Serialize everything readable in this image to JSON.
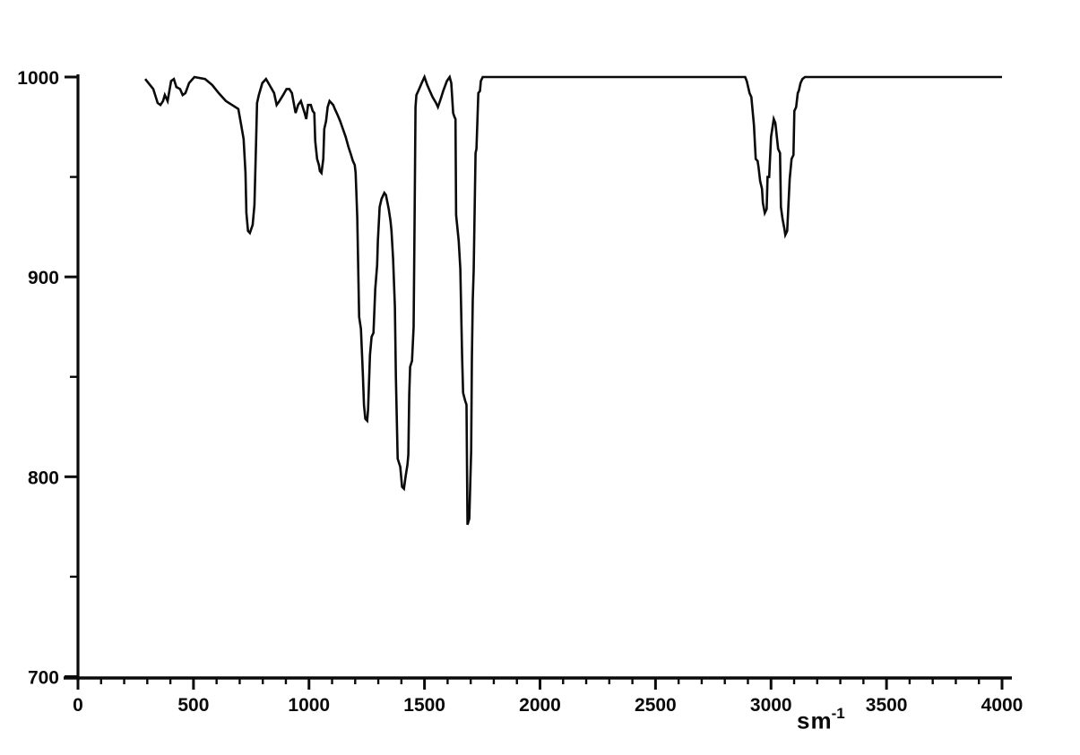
{
  "figure": {
    "background": "#ffffff",
    "curve_color": "#0a0a0a",
    "axis_color": "#0a0a0a"
  },
  "axes": {
    "x": {
      "min": 0,
      "max": 4000,
      "major_tick_step": 500,
      "minor_tick_step": 100,
      "tick_labels": [
        "0",
        "500",
        "1000",
        "1500",
        "2000",
        "2500",
        "3000",
        "3500",
        "4000"
      ],
      "unit_base": "sm",
      "unit_exponent": "-1"
    },
    "y": {
      "min": 700,
      "max": 1000,
      "major_tick_step": 100,
      "minor_tick_step": 50,
      "tick_labels": [
        "700",
        "800",
        "900",
        "1000"
      ]
    }
  },
  "chart_data": {
    "type": "line",
    "title": "",
    "xlabel": "sm⁻¹",
    "ylabel": "",
    "xlim": [
      0,
      4000
    ],
    "ylim": [
      700,
      1000
    ],
    "grid": false,
    "legend_position": "none",
    "absorption_minima_x": [
      736,
      1050,
      1240,
      1403,
      1686,
      2973,
      3062
    ],
    "series": [
      {
        "name": "spectrum",
        "color": "#0a0a0a",
        "points": [
          [
            291,
            999
          ],
          [
            326,
            994
          ],
          [
            345,
            987
          ],
          [
            357,
            986
          ],
          [
            368,
            988
          ],
          [
            376,
            991
          ],
          [
            388,
            988
          ],
          [
            403,
            998
          ],
          [
            415,
            999
          ],
          [
            426,
            995
          ],
          [
            442,
            994
          ],
          [
            453,
            991
          ],
          [
            465,
            992
          ],
          [
            481,
            997
          ],
          [
            504,
            1000
          ],
          [
            550,
            999
          ],
          [
            581,
            996
          ],
          [
            609,
            992
          ],
          [
            640,
            988
          ],
          [
            667,
            986
          ],
          [
            694,
            984
          ],
          [
            705,
            977
          ],
          [
            717,
            969
          ],
          [
            725,
            952
          ],
          [
            729,
            932
          ],
          [
            736,
            923
          ],
          [
            744,
            922
          ],
          [
            756,
            926
          ],
          [
            764,
            936
          ],
          [
            771,
            967
          ],
          [
            775,
            987
          ],
          [
            783,
            991
          ],
          [
            798,
            997
          ],
          [
            814,
            999
          ],
          [
            829,
            996
          ],
          [
            849,
            992
          ],
          [
            860,
            986
          ],
          [
            872,
            988
          ],
          [
            888,
            991
          ],
          [
            903,
            994
          ],
          [
            915,
            994
          ],
          [
            926,
            992
          ],
          [
            942,
            982
          ],
          [
            953,
            986
          ],
          [
            965,
            988
          ],
          [
            981,
            982
          ],
          [
            988,
            979
          ],
          [
            996,
            986
          ],
          [
            1008,
            986
          ],
          [
            1016,
            983
          ],
          [
            1023,
            982
          ],
          [
            1027,
            968
          ],
          [
            1035,
            959
          ],
          [
            1043,
            956
          ],
          [
            1047,
            953
          ],
          [
            1054,
            952
          ],
          [
            1062,
            959
          ],
          [
            1066,
            974
          ],
          [
            1074,
            978
          ],
          [
            1081,
            985
          ],
          [
            1089,
            988
          ],
          [
            1105,
            986
          ],
          [
            1112,
            984
          ],
          [
            1124,
            981
          ],
          [
            1135,
            978
          ],
          [
            1147,
            974
          ],
          [
            1159,
            970
          ],
          [
            1171,
            965
          ],
          [
            1182,
            961
          ],
          [
            1190,
            958
          ],
          [
            1198,
            956
          ],
          [
            1202,
            952
          ],
          [
            1209,
            930
          ],
          [
            1217,
            880
          ],
          [
            1225,
            874
          ],
          [
            1233,
            852
          ],
          [
            1238,
            836
          ],
          [
            1244,
            829
          ],
          [
            1252,
            828
          ],
          [
            1256,
            834
          ],
          [
            1264,
            861
          ],
          [
            1271,
            870
          ],
          [
            1279,
            872
          ],
          [
            1287,
            894
          ],
          [
            1295,
            906
          ],
          [
            1298,
            918
          ],
          [
            1306,
            935
          ],
          [
            1314,
            939
          ],
          [
            1326,
            942
          ],
          [
            1333,
            941
          ],
          [
            1345,
            934
          ],
          [
            1353,
            928
          ],
          [
            1357,
            923
          ],
          [
            1364,
            909
          ],
          [
            1372,
            885
          ],
          [
            1376,
            850
          ],
          [
            1384,
            809
          ],
          [
            1395,
            805
          ],
          [
            1403,
            795
          ],
          [
            1411,
            794
          ],
          [
            1418,
            800
          ],
          [
            1426,
            806
          ],
          [
            1430,
            811
          ],
          [
            1434,
            841
          ],
          [
            1438,
            855
          ],
          [
            1446,
            858
          ],
          [
            1453,
            875
          ],
          [
            1457,
            925
          ],
          [
            1459,
            957
          ],
          [
            1461,
            985
          ],
          [
            1465,
            991
          ],
          [
            1473,
            993
          ],
          [
            1488,
            997
          ],
          [
            1500,
            1000
          ],
          [
            1512,
            996
          ],
          [
            1523,
            993
          ],
          [
            1535,
            990
          ],
          [
            1550,
            987
          ],
          [
            1558,
            985
          ],
          [
            1570,
            989
          ],
          [
            1581,
            993
          ],
          [
            1597,
            998
          ],
          [
            1609,
            1000
          ],
          [
            1616,
            997
          ],
          [
            1624,
            982
          ],
          [
            1630,
            980
          ],
          [
            1634,
            979
          ],
          [
            1637,
            931
          ],
          [
            1648,
            918
          ],
          [
            1655,
            904
          ],
          [
            1663,
            860
          ],
          [
            1667,
            842
          ],
          [
            1676,
            838
          ],
          [
            1682,
            836
          ],
          [
            1686,
            776
          ],
          [
            1694,
            779
          ],
          [
            1702,
            813
          ],
          [
            1705,
            859
          ],
          [
            1709,
            889
          ],
          [
            1713,
            903
          ],
          [
            1721,
            962
          ],
          [
            1725,
            964
          ],
          [
            1733,
            992
          ],
          [
            1740,
            993
          ],
          [
            1744,
            998
          ],
          [
            1752,
            1000
          ],
          [
            2888,
            1000
          ],
          [
            2895,
            998
          ],
          [
            2907,
            992
          ],
          [
            2915,
            990
          ],
          [
            2926,
            976
          ],
          [
            2934,
            959
          ],
          [
            2942,
            958
          ],
          [
            2946,
            955
          ],
          [
            2953,
            948
          ],
          [
            2961,
            944
          ],
          [
            2965,
            937
          ],
          [
            2973,
            932
          ],
          [
            2981,
            934
          ],
          [
            2985,
            950
          ],
          [
            2992,
            950
          ],
          [
            3000,
            970
          ],
          [
            3012,
            979
          ],
          [
            3019,
            977
          ],
          [
            3031,
            964
          ],
          [
            3039,
            962
          ],
          [
            3043,
            935
          ],
          [
            3050,
            929
          ],
          [
            3058,
            924
          ],
          [
            3062,
            921
          ],
          [
            3070,
            923
          ],
          [
            3081,
            949
          ],
          [
            3089,
            959
          ],
          [
            3097,
            961
          ],
          [
            3101,
            983
          ],
          [
            3109,
            985
          ],
          [
            3116,
            992
          ],
          [
            3120,
            993
          ],
          [
            3128,
            997
          ],
          [
            3136,
            999
          ],
          [
            3147,
            1000
          ],
          [
            4000,
            1000
          ]
        ]
      }
    ]
  }
}
